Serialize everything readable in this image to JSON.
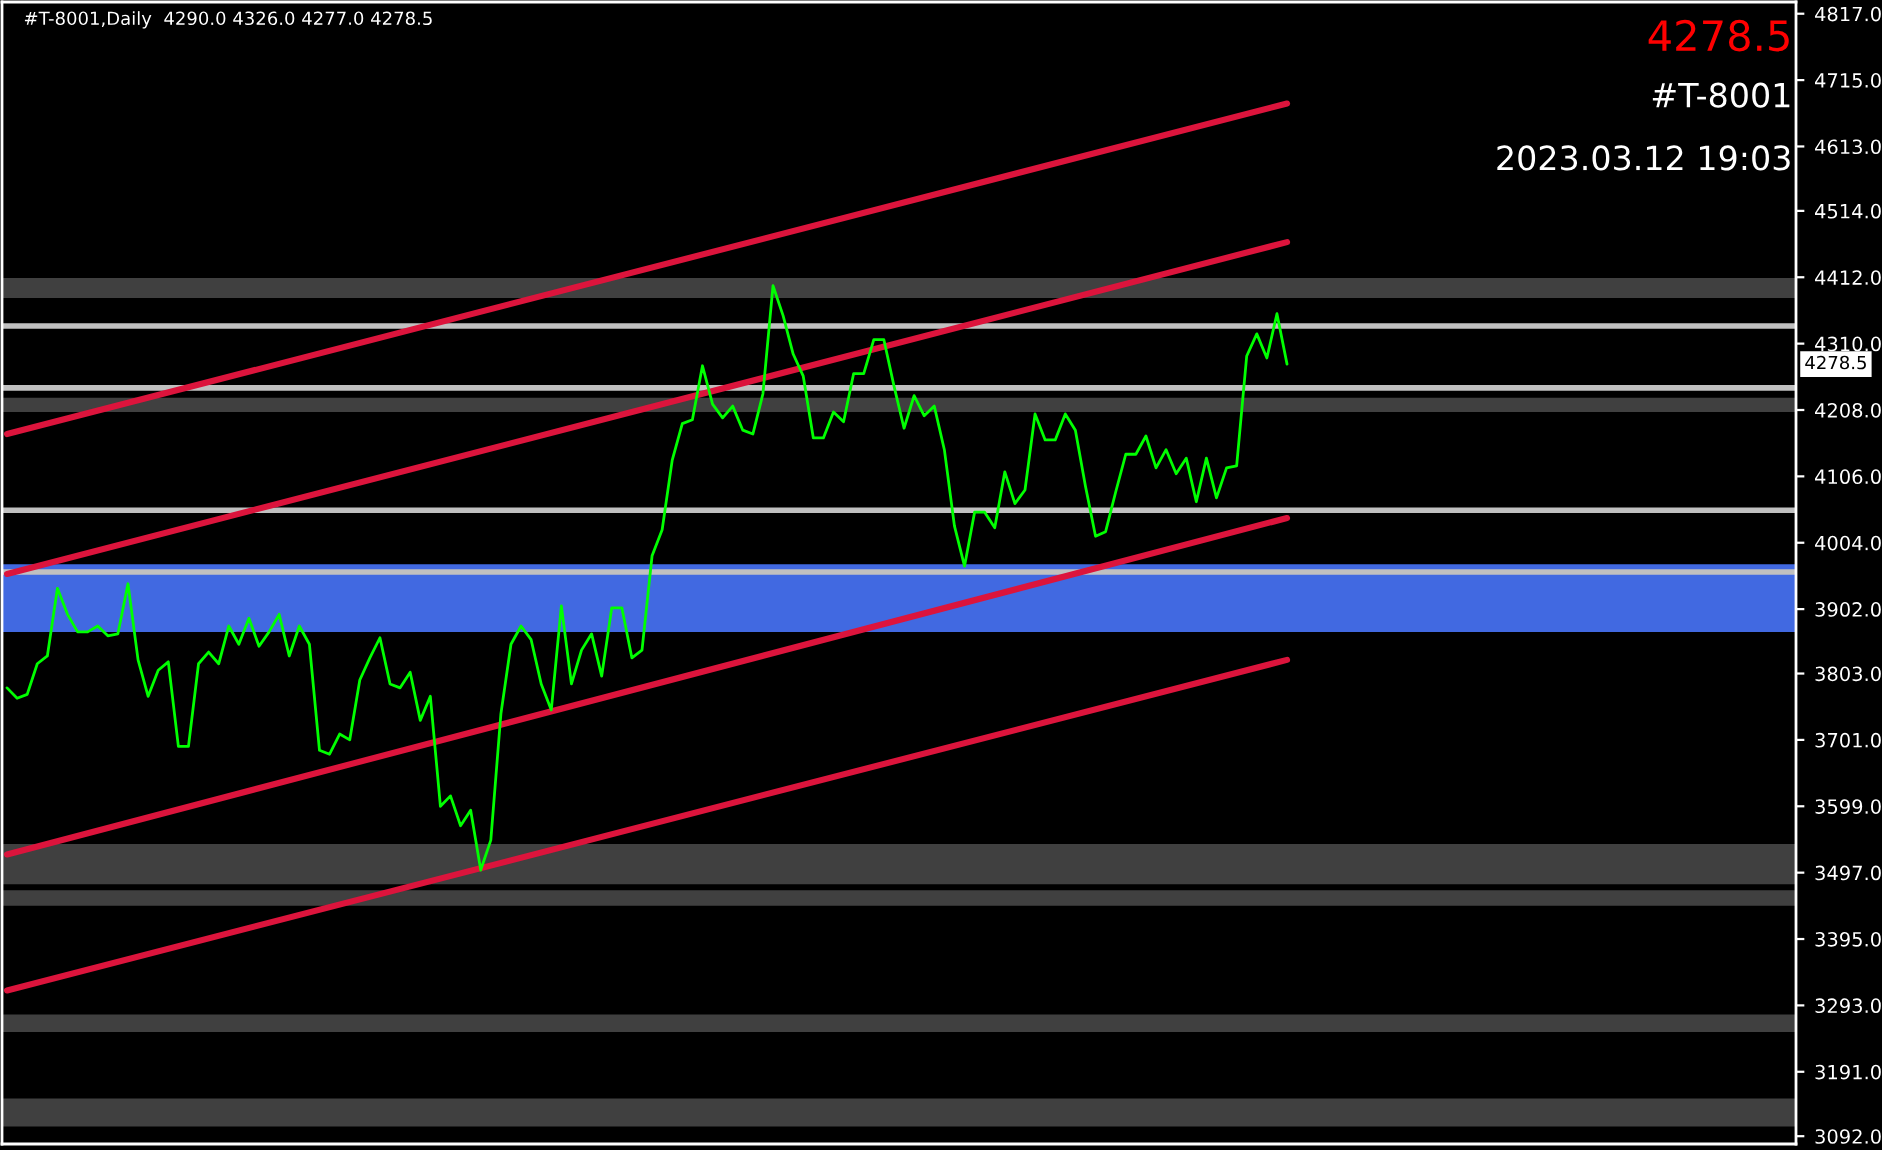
{
  "chart_data": {
    "type": "line",
    "title": "#T-8001,Daily  4290.0 4326.0 4277.0 4278.5",
    "annotations": [
      "4278.5",
      "4278.5",
      "#T-8001",
      "2023.03.12 19:03"
    ],
    "categories": [
      null,
      null,
      null,
      null,
      null,
      null,
      null,
      null,
      null,
      null,
      null,
      null,
      null,
      null,
      null,
      null,
      null,
      null,
      null,
      null,
      null,
      null,
      null,
      null,
      null,
      null,
      null,
      null,
      null,
      null,
      null,
      null,
      null,
      null,
      null,
      null,
      null,
      null,
      null,
      null,
      null,
      null,
      null,
      null,
      null,
      null,
      null,
      null,
      null,
      null,
      null,
      null,
      null,
      null,
      null,
      null,
      null,
      null,
      null,
      null,
      null,
      null,
      null,
      null,
      null,
      null,
      null,
      null,
      null,
      null,
      null,
      null,
      null,
      null,
      null,
      null,
      null,
      null,
      null,
      null,
      null,
      null,
      null,
      null,
      null,
      null,
      null,
      null,
      null,
      null,
      null,
      null,
      null,
      null,
      null,
      null,
      null,
      null,
      null,
      null,
      null,
      null,
      null,
      null,
      null,
      null,
      null,
      null,
      null,
      null,
      null,
      null,
      null,
      null,
      null,
      null,
      null,
      null,
      null,
      null,
      null,
      null,
      null,
      null,
      null,
      null,
      null,
      null,
      null,
      null,
      null,
      null,
      null,
      null,
      null,
      null,
      null,
      null,
      null,
      null,
      null,
      null,
      null,
      null,
      null,
      null,
      null,
      null,
      null,
      null,
      null,
      null,
      null,
      null,
      null,
      null,
      null,
      null,
      null,
      null,
      null,
      null,
      null,
      null,
      null,
      null,
      null,
      null,
      null,
      null,
      null,
      null,
      null,
      null,
      null,
      null,
      null,
      null
    ],
    "series": [
      {
        "color": "#00ff00",
        "values": [
          3781,
          3765,
          3771,
          3818,
          3830,
          3934,
          3894,
          3867,
          3867,
          3876,
          3861,
          3864,
          3941,
          3824,
          3768,
          3808,
          3821,
          3691,
          3691,
          3818,
          3836,
          3818,
          3876,
          3848,
          3888,
          3845,
          3867,
          3894,
          3830,
          3876,
          3848,
          3685,
          3679,
          3710,
          3701,
          3793,
          3827,
          3858,
          3787,
          3781,
          3805,
          3731,
          3768,
          3599,
          3615,
          3569,
          3593,
          3501,
          3547,
          3741,
          3848,
          3876,
          3855,
          3787,
          3747,
          3907,
          3787,
          3839,
          3864,
          3799,
          3904,
          3904,
          3827,
          3839,
          3984,
          4024,
          4131,
          4187,
          4193,
          4276,
          4217,
          4196,
          4214,
          4177,
          4171,
          4233,
          4399,
          4353,
          4294,
          4260,
          4165,
          4165,
          4205,
          4190,
          4264,
          4264,
          4316,
          4316,
          4245,
          4180,
          4230,
          4199,
          4214,
          4147,
          4030,
          3968,
          4051,
          4051,
          4027,
          4113,
          4064,
          4085,
          4202,
          4162,
          4162,
          4202,
          4177,
          4091,
          4014,
          4021,
          4082,
          4140,
          4140,
          4168,
          4119,
          4147,
          4110,
          4134,
          4067,
          4134,
          4073,
          4119,
          4122,
          4291,
          4325,
          4288,
          4356,
          4278.5,
          null,
          null,
          null,
          null,
          null,
          null,
          null,
          null,
          null,
          null,
          null,
          null,
          null,
          null,
          null,
          null,
          null,
          null,
          null,
          null,
          null,
          null,
          null,
          null,
          null,
          null,
          null,
          null,
          null,
          null,
          null,
          null,
          null,
          null,
          null,
          null,
          null,
          null,
          null,
          null,
          null,
          null,
          null,
          null,
          null,
          null,
          null,
          null,
          null,
          null
        ]
      },
      {
        "type": "line",
        "color": "#dc143c",
        "values": [
          4171,
          null,
          null,
          null,
          null,
          null,
          null,
          null,
          null,
          null,
          null,
          null,
          null,
          null,
          null,
          null,
          null,
          null,
          null,
          null,
          null,
          null,
          null,
          null,
          null,
          null,
          null,
          null,
          null,
          null,
          null,
          null,
          null,
          null,
          null,
          null,
          null,
          null,
          null,
          null,
          null,
          null,
          null,
          null,
          null,
          null,
          null,
          null,
          null,
          null,
          null,
          null,
          null,
          null,
          null,
          null,
          null,
          null,
          null,
          null,
          null,
          null,
          null,
          null,
          null,
          null,
          null,
          null,
          null,
          null,
          null,
          null,
          null,
          null,
          null,
          null,
          null,
          null,
          null,
          null,
          null,
          null,
          null,
          null,
          null,
          null,
          null,
          null,
          null,
          null,
          null,
          null,
          null,
          null,
          null,
          null,
          null,
          null,
          null,
          null,
          null,
          null,
          null,
          null,
          null,
          null,
          null,
          null,
          null,
          null,
          null,
          null,
          null,
          null,
          null,
          null,
          null,
          null,
          null,
          null,
          null,
          null,
          null,
          null,
          null,
          null,
          null,
          4679,
          null,
          null,
          null,
          null,
          null,
          null,
          null,
          null,
          null,
          null,
          null,
          null,
          null,
          null,
          null,
          null,
          null,
          null,
          null,
          null,
          null,
          null,
          null,
          null,
          null,
          null,
          null,
          null,
          null,
          null,
          null,
          null,
          null,
          null,
          null,
          null,
          null,
          null,
          null,
          null,
          null,
          null,
          null,
          null,
          null,
          null,
          null,
          null,
          null,
          null
        ]
      },
      {
        "type": "line",
        "color": "#dc143c",
        "values": [
          3956,
          null,
          null,
          null,
          null,
          null,
          null,
          null,
          null,
          null,
          null,
          null,
          null,
          null,
          null,
          null,
          null,
          null,
          null,
          null,
          null,
          null,
          null,
          null,
          null,
          null,
          null,
          null,
          null,
          null,
          null,
          null,
          null,
          null,
          null,
          null,
          null,
          null,
          null,
          null,
          null,
          null,
          null,
          null,
          null,
          null,
          null,
          null,
          null,
          null,
          null,
          null,
          null,
          null,
          null,
          null,
          null,
          null,
          null,
          null,
          null,
          null,
          null,
          null,
          null,
          null,
          null,
          null,
          null,
          null,
          null,
          null,
          null,
          null,
          null,
          null,
          null,
          null,
          null,
          null,
          null,
          null,
          null,
          null,
          null,
          null,
          null,
          null,
          null,
          null,
          null,
          null,
          null,
          null,
          null,
          null,
          null,
          null,
          null,
          null,
          null,
          null,
          null,
          null,
          null,
          null,
          null,
          null,
          null,
          null,
          null,
          null,
          null,
          null,
          null,
          null,
          null,
          null,
          null,
          null,
          null,
          null,
          null,
          null,
          null,
          null,
          null,
          4466,
          null,
          null,
          null,
          null,
          null,
          null,
          null,
          null,
          null,
          null,
          null,
          null,
          null,
          null,
          null,
          null,
          null,
          null,
          null,
          null,
          null,
          null,
          null,
          null,
          null,
          null,
          null,
          null,
          null,
          null,
          null,
          null,
          null,
          null,
          null,
          null,
          null,
          null,
          null,
          null,
          null,
          null,
          null,
          null,
          null,
          null,
          null,
          null,
          null,
          null
        ]
      },
      {
        "type": "line",
        "color": "#dc143c",
        "values": [
          3525,
          null,
          null,
          null,
          null,
          null,
          null,
          null,
          null,
          null,
          null,
          null,
          null,
          null,
          null,
          null,
          null,
          null,
          null,
          null,
          null,
          null,
          null,
          null,
          null,
          null,
          null,
          null,
          null,
          null,
          null,
          null,
          null,
          null,
          null,
          null,
          null,
          null,
          null,
          null,
          null,
          null,
          null,
          null,
          null,
          null,
          null,
          null,
          null,
          null,
          null,
          null,
          null,
          null,
          null,
          null,
          null,
          null,
          null,
          null,
          null,
          null,
          null,
          null,
          null,
          null,
          null,
          null,
          null,
          null,
          null,
          null,
          null,
          null,
          null,
          null,
          null,
          null,
          null,
          null,
          null,
          null,
          null,
          null,
          null,
          null,
          null,
          null,
          null,
          null,
          null,
          null,
          null,
          null,
          null,
          null,
          null,
          null,
          null,
          null,
          null,
          null,
          null,
          null,
          null,
          null,
          null,
          null,
          null,
          null,
          null,
          null,
          null,
          null,
          null,
          null,
          null,
          null,
          null,
          null,
          null,
          null,
          null,
          null,
          null,
          null,
          null,
          4042,
          null,
          null,
          null,
          null,
          null,
          null,
          null,
          null,
          null,
          null,
          null,
          null,
          null,
          null,
          null,
          null,
          null,
          null,
          null,
          null,
          null,
          null,
          null,
          null,
          null,
          null,
          null,
          null,
          null,
          null,
          null,
          null,
          null,
          null,
          null,
          null,
          null,
          null,
          null,
          null,
          null,
          null,
          null,
          null,
          null,
          null,
          null,
          null,
          null,
          null
        ]
      },
      {
        "type": "line",
        "color": "#dc143c",
        "values": [
          3316,
          null,
          null,
          null,
          null,
          null,
          null,
          null,
          null,
          null,
          null,
          null,
          null,
          null,
          null,
          null,
          null,
          null,
          null,
          null,
          null,
          null,
          null,
          null,
          null,
          null,
          null,
          null,
          null,
          null,
          null,
          null,
          null,
          null,
          null,
          null,
          null,
          null,
          null,
          null,
          null,
          null,
          null,
          null,
          null,
          null,
          null,
          null,
          null,
          null,
          null,
          null,
          null,
          null,
          null,
          null,
          null,
          null,
          null,
          null,
          null,
          null,
          null,
          null,
          null,
          null,
          null,
          null,
          null,
          null,
          null,
          null,
          null,
          null,
          null,
          null,
          null,
          null,
          null,
          null,
          null,
          null,
          null,
          null,
          null,
          null,
          null,
          null,
          null,
          null,
          null,
          null,
          null,
          null,
          null,
          null,
          null,
          null,
          null,
          null,
          null,
          null,
          null,
          null,
          null,
          null,
          null,
          null,
          null,
          null,
          null,
          null,
          null,
          null,
          null,
          null,
          null,
          null,
          null,
          null,
          null,
          null,
          null,
          null,
          null,
          null,
          null,
          3824,
          null,
          null,
          null,
          null,
          null,
          null,
          null,
          null,
          null,
          null,
          null,
          null,
          null,
          null,
          null,
          null,
          null,
          null,
          null,
          null,
          null,
          null,
          null,
          null,
          null,
          null,
          null,
          null,
          null,
          null,
          null,
          null,
          null,
          null,
          null,
          null,
          null,
          null,
          null,
          null,
          null,
          null,
          null,
          null,
          null,
          null,
          null,
          null,
          null,
          null
        ]
      }
    ],
    "ref_lines": [
      {
        "axis": "y",
        "value": 4337,
        "color": "#c0c0c0"
      },
      {
        "axis": "y",
        "value": 4242,
        "color": "#c0c0c0"
      },
      {
        "axis": "y",
        "value": 4054,
        "color": "#c0c0c0"
      },
      {
        "axis": "y",
        "value": 3959,
        "color": "#c0c0c0"
      }
    ],
    "bands": [
      {
        "axis": "y",
        "from": 4380,
        "to": 4411,
        "color": "#404040"
      },
      {
        "axis": "y",
        "from": 4205,
        "to": 4227,
        "color": "#404040"
      },
      {
        "axis": "y",
        "from": 3867,
        "to": 3971,
        "color": "#4169e1"
      },
      {
        "axis": "y",
        "from": 3479,
        "to": 3541,
        "color": "#404040"
      },
      {
        "axis": "y",
        "from": 3446,
        "to": 3470,
        "color": "#404040"
      },
      {
        "axis": "y",
        "from": 3252,
        "to": 3279,
        "color": "#404040"
      },
      {
        "axis": "y",
        "from": 3107,
        "to": 3150,
        "color": "#404040"
      }
    ],
    "ylim": [
      3080,
      4835
    ],
    "yticks": [
      {
        "value": 4817,
        "label": "4817.0"
      },
      {
        "value": 4715,
        "label": "4715.0"
      },
      {
        "value": 4613,
        "label": "4613.0"
      },
      {
        "value": 4514,
        "label": "4514.0"
      },
      {
        "value": 4412,
        "label": "4412.0"
      },
      {
        "value": 4310,
        "label": "4310.0"
      },
      {
        "value": 4208,
        "label": "4208.0"
      },
      {
        "value": 4106,
        "label": "4106.0"
      },
      {
        "value": 4004,
        "label": "4004.0"
      },
      {
        "value": 3902,
        "label": "3902.0"
      },
      {
        "value": 3803,
        "label": "3803.0"
      },
      {
        "value": 3701,
        "label": "3701.0"
      },
      {
        "value": 3599,
        "label": "3599.0"
      },
      {
        "value": 3497,
        "label": "3497.0"
      },
      {
        "value": 3395,
        "label": "3395.0"
      },
      {
        "value": 3293,
        "label": "3293.0"
      },
      {
        "value": 3191,
        "label": "3191.0"
      },
      {
        "value": 3092,
        "label": "3092.0"
      }
    ],
    "tick_labels": "y",
    "grid": false,
    "legend": false,
    "marker": "none",
    "line_style": "solid"
  }
}
